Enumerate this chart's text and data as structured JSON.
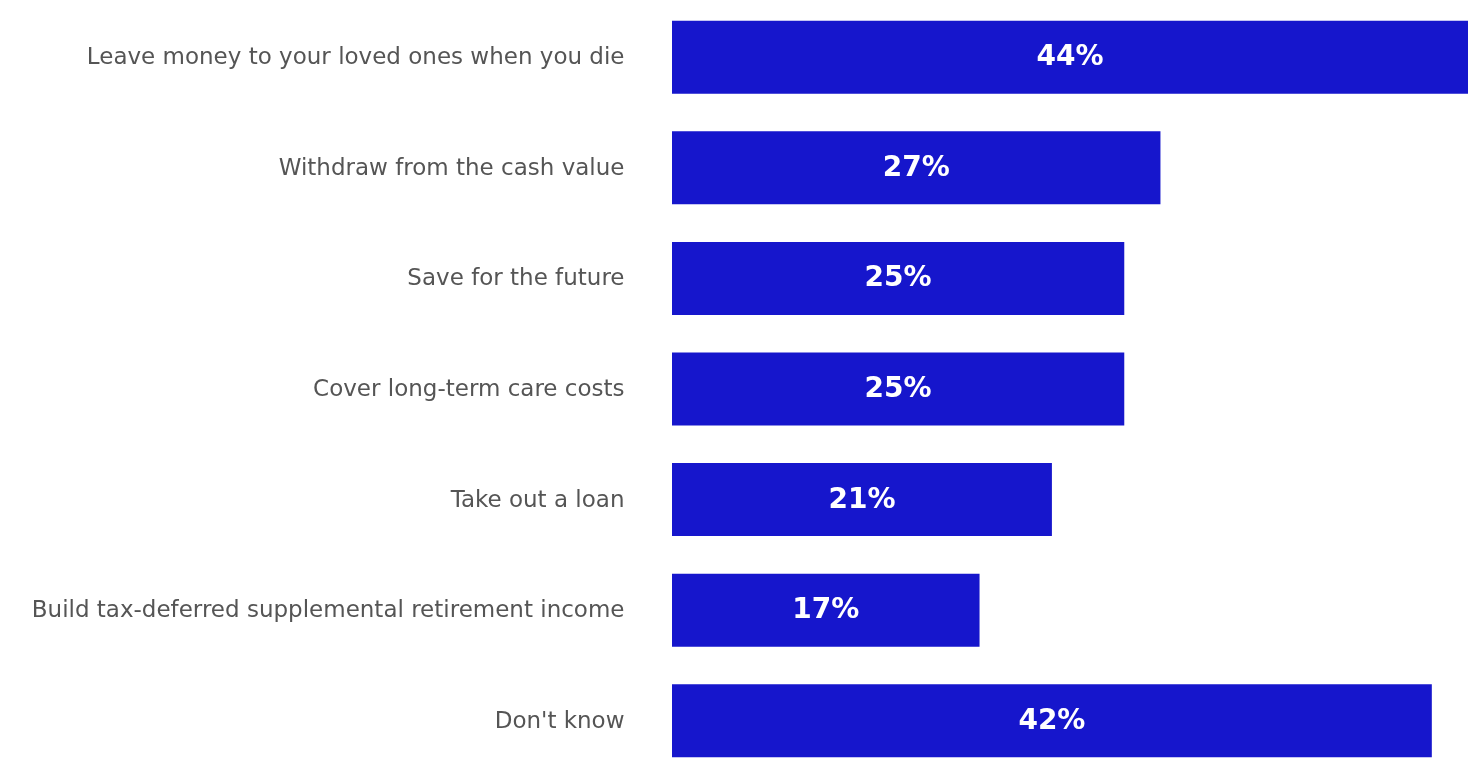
{
  "chart_data": {
    "type": "bar",
    "orientation": "horizontal",
    "color": "#1616cc",
    "categories": [
      "Leave money to your loved ones when you die",
      "Withdraw from the cash value",
      "Save for the future",
      "Cover long-term care costs",
      "Take out a loan",
      "Build tax-deferred supplemental retirement income",
      "Don't know"
    ],
    "values": [
      44,
      27,
      25,
      25,
      21,
      17,
      42
    ],
    "value_labels": [
      "44%",
      "27%",
      "25%",
      "25%",
      "21%",
      "17%",
      "42%"
    ]
  }
}
